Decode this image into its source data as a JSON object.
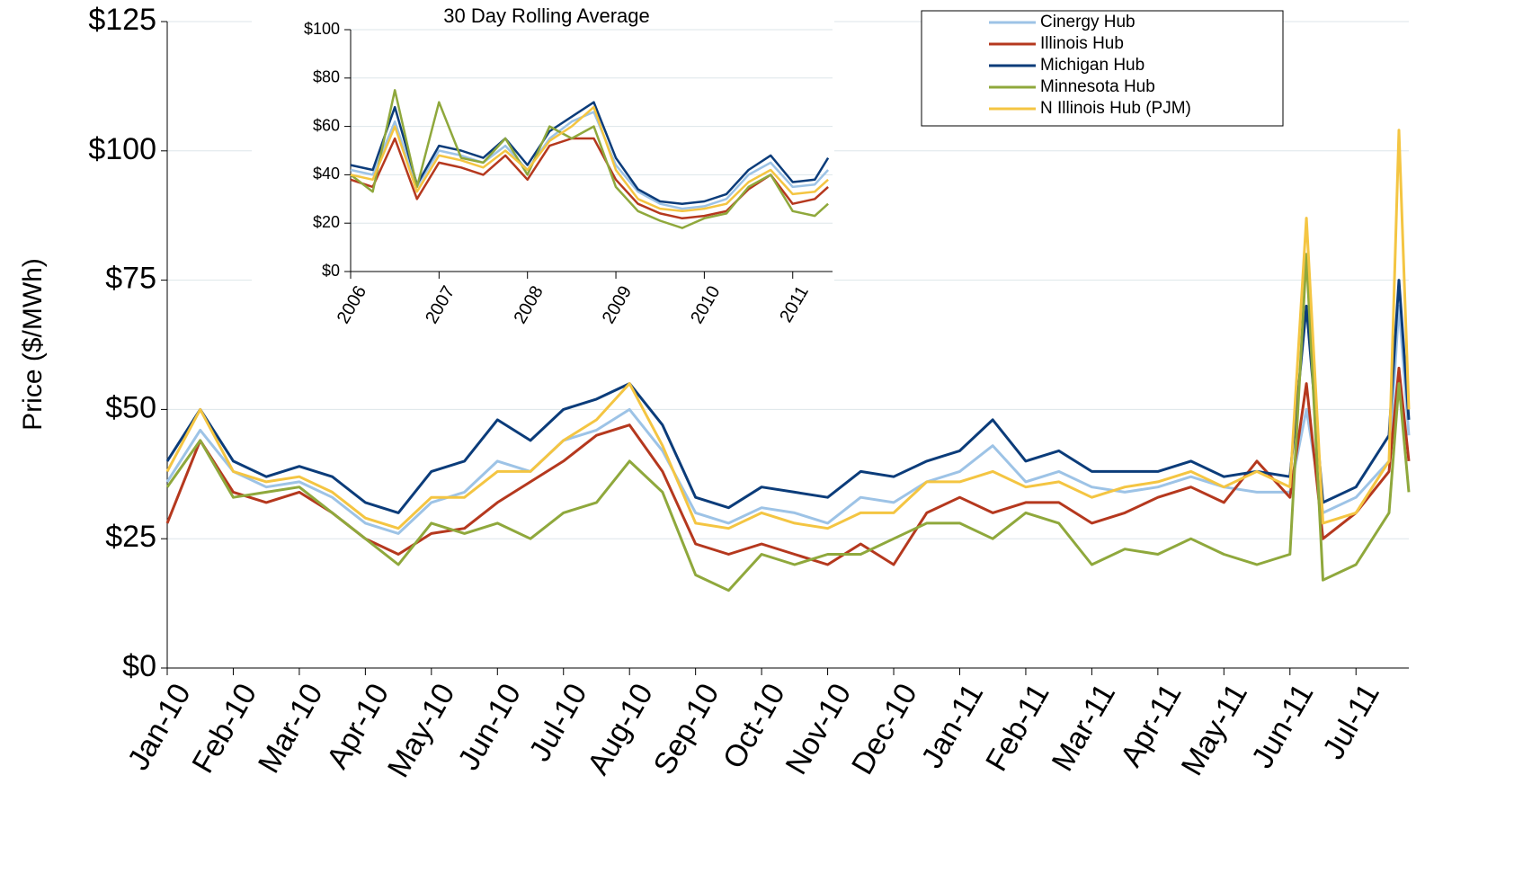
{
  "chart_data": [
    {
      "type": "line",
      "y_label": "Price ($/MWh)",
      "xlim": [
        0,
        18.8
      ],
      "xticks": [
        {
          "value": 0,
          "label": "Jan-10"
        },
        {
          "value": 1,
          "label": "Feb-10"
        },
        {
          "value": 2,
          "label": "Mar-10"
        },
        {
          "value": 3,
          "label": "Apr-10"
        },
        {
          "value": 4,
          "label": "May-10"
        },
        {
          "value": 5,
          "label": "Jun-10"
        },
        {
          "value": 6,
          "label": "Jul-10"
        },
        {
          "value": 7,
          "label": "Aug-10"
        },
        {
          "value": 8,
          "label": "Sep-10"
        },
        {
          "value": 9,
          "label": "Oct-10"
        },
        {
          "value": 10,
          "label": "Nov-10"
        },
        {
          "value": 11,
          "label": "Dec-10"
        },
        {
          "value": 12,
          "label": "Jan-11"
        },
        {
          "value": 13,
          "label": "Feb-11"
        },
        {
          "value": 14,
          "label": "Mar-11"
        },
        {
          "value": 15,
          "label": "Apr-11"
        },
        {
          "value": 16,
          "label": "May-11"
        },
        {
          "value": 17,
          "label": "Jun-11"
        },
        {
          "value": 18,
          "label": "Jul-11"
        }
      ],
      "ylim": [
        0,
        125
      ],
      "yticks": [
        {
          "value": 0,
          "label": "$0"
        },
        {
          "value": 25,
          "label": "$25"
        },
        {
          "value": 50,
          "label": "$50"
        },
        {
          "value": 75,
          "label": "$75"
        },
        {
          "value": 100,
          "label": "$100"
        },
        {
          "value": 125,
          "label": "$125"
        }
      ],
      "grid": true,
      "x": [
        0,
        0.5,
        1,
        1.5,
        2,
        2.5,
        3,
        3.5,
        4,
        4.5,
        5,
        5.5,
        6,
        6.5,
        7,
        7.5,
        8,
        8.5,
        9,
        9.5,
        10,
        10.5,
        11,
        11.5,
        12,
        12.5,
        13,
        13.5,
        14,
        14.5,
        15,
        15.5,
        16,
        16.5,
        17,
        17.25,
        17.5,
        18,
        18.5,
        18.65,
        18.8
      ],
      "series": [
        {
          "name": "Cinergy Hub",
          "color": "#9dc3e6",
          "values": [
            36,
            46,
            38,
            35,
            36,
            33,
            28,
            26,
            32,
            34,
            40,
            38,
            44,
            46,
            50,
            42,
            30,
            28,
            31,
            30,
            28,
            33,
            32,
            36,
            38,
            43,
            36,
            38,
            35,
            34,
            35,
            37,
            35,
            34,
            34,
            50,
            30,
            33,
            40,
            70,
            45
          ]
        },
        {
          "name": "Illinois Hub",
          "color": "#b5381e",
          "values": [
            28,
            44,
            34,
            32,
            34,
            30,
            25,
            22,
            26,
            27,
            32,
            36,
            40,
            45,
            47,
            38,
            24,
            22,
            24,
            22,
            20,
            24,
            20,
            30,
            33,
            30,
            32,
            32,
            28,
            30,
            33,
            35,
            32,
            40,
            33,
            55,
            25,
            30,
            38,
            58,
            40
          ]
        },
        {
          "name": "Michigan Hub",
          "color": "#0b3c7a",
          "values": [
            40,
            50,
            40,
            37,
            39,
            37,
            32,
            30,
            38,
            40,
            48,
            44,
            50,
            52,
            55,
            47,
            33,
            31,
            35,
            34,
            33,
            38,
            37,
            40,
            42,
            48,
            40,
            42,
            38,
            38,
            38,
            40,
            37,
            38,
            37,
            70,
            32,
            35,
            45,
            75,
            48
          ]
        },
        {
          "name": "Minnesota Hub",
          "color": "#8fa83c",
          "values": [
            35,
            44,
            33,
            34,
            35,
            30,
            25,
            20,
            28,
            26,
            28,
            25,
            30,
            32,
            40,
            34,
            18,
            15,
            22,
            20,
            22,
            22,
            25,
            28,
            28,
            25,
            30,
            28,
            20,
            23,
            22,
            25,
            22,
            20,
            22,
            80,
            17,
            20,
            30,
            55,
            34
          ]
        },
        {
          "name": "N Illinois Hub (PJM)",
          "color": "#f4c542",
          "values": [
            38,
            50,
            38,
            36,
            37,
            34,
            29,
            27,
            33,
            33,
            38,
            38,
            44,
            48,
            55,
            43,
            28,
            27,
            30,
            28,
            27,
            30,
            30,
            36,
            36,
            38,
            35,
            36,
            33,
            35,
            36,
            38,
            35,
            38,
            35,
            87,
            28,
            30,
            40,
            104,
            50
          ]
        }
      ]
    },
    {
      "type": "line",
      "title": "30 Day Rolling Average",
      "xlim": [
        2006,
        2011.45
      ],
      "xticks": [
        2006,
        2007,
        2008,
        2009,
        2010,
        2011
      ],
      "ylim": [
        0,
        100
      ],
      "yticks": [
        {
          "value": 0,
          "label": "$0"
        },
        {
          "value": 20,
          "label": "$20"
        },
        {
          "value": 40,
          "label": "$40"
        },
        {
          "value": 60,
          "label": "$60"
        },
        {
          "value": 80,
          "label": "$80"
        },
        {
          "value": 100,
          "label": "$100"
        }
      ],
      "grid": true,
      "x": [
        2006,
        2006.25,
        2006.5,
        2006.75,
        2007,
        2007.25,
        2007.5,
        2007.75,
        2008,
        2008.25,
        2008.5,
        2008.75,
        2009,
        2009.25,
        2009.5,
        2009.75,
        2010,
        2010.25,
        2010.5,
        2010.75,
        2011,
        2011.25,
        2011.4
      ],
      "series": [
        {
          "color": "#9dc3e6",
          "values": [
            42,
            40,
            62,
            35,
            50,
            48,
            45,
            52,
            42,
            55,
            62,
            66,
            44,
            33,
            28,
            26,
            27,
            30,
            40,
            45,
            35,
            36,
            42
          ]
        },
        {
          "color": "#b5381e",
          "values": [
            38,
            35,
            55,
            30,
            45,
            43,
            40,
            48,
            38,
            52,
            55,
            55,
            38,
            28,
            24,
            22,
            23,
            25,
            34,
            40,
            28,
            30,
            35
          ]
        },
        {
          "color": "#0b3c7a",
          "values": [
            44,
            42,
            68,
            36,
            52,
            50,
            47,
            55,
            44,
            58,
            64,
            70,
            47,
            34,
            29,
            28,
            29,
            32,
            42,
            48,
            37,
            38,
            47
          ]
        },
        {
          "color": "#8fa83c",
          "values": [
            40,
            33,
            75,
            35,
            70,
            47,
            45,
            55,
            40,
            60,
            55,
            60,
            35,
            25,
            21,
            18,
            22,
            24,
            35,
            40,
            25,
            23,
            28
          ]
        },
        {
          "color": "#f4c542",
          "values": [
            40,
            38,
            60,
            33,
            48,
            46,
            43,
            50,
            42,
            54,
            60,
            68,
            42,
            30,
            26,
            25,
            26,
            28,
            37,
            42,
            32,
            33,
            38
          ]
        }
      ]
    }
  ]
}
